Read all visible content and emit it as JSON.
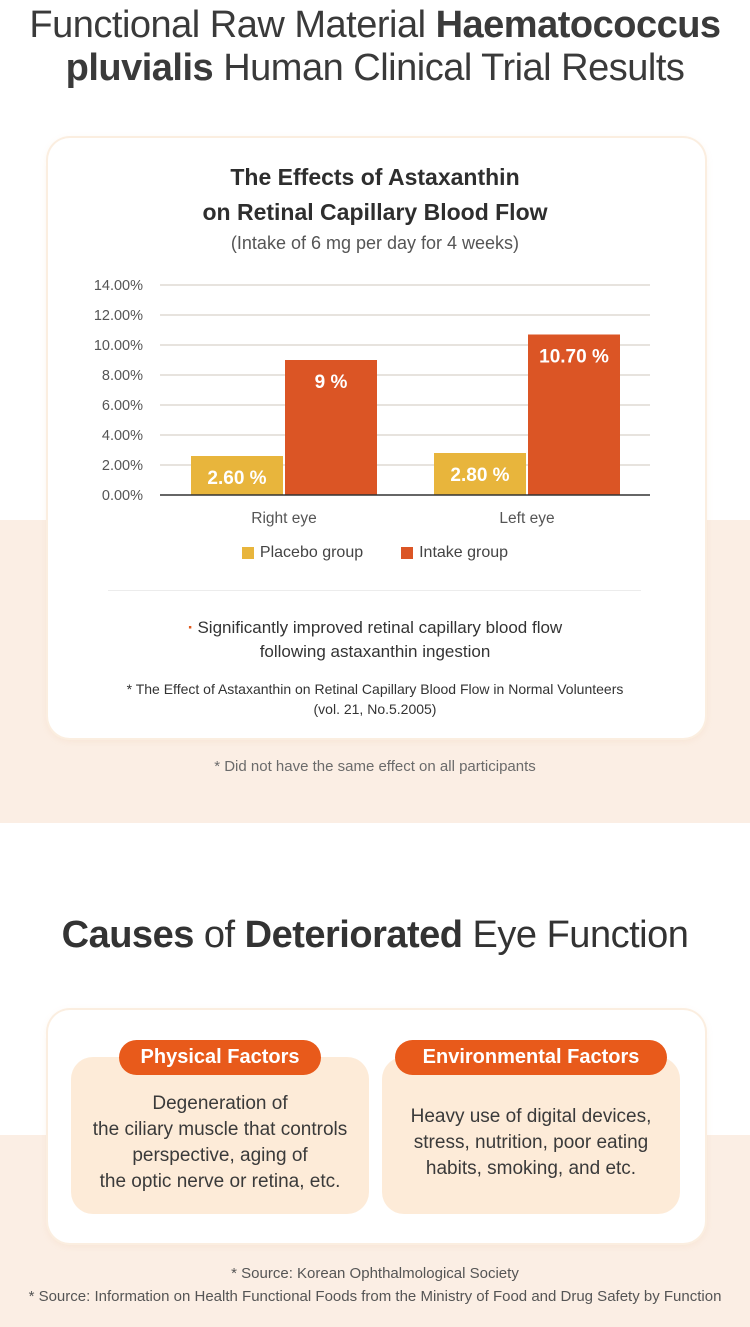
{
  "header": {
    "line1_light": "Functional Raw Material ",
    "line1_bold": "Haematococcus",
    "line2_bold": "pluvialis",
    "line2_light": " Human Clinical Trial Results"
  },
  "chart_card": {
    "title_line1": "The Effects of Astaxanthin",
    "title_line2": "on Retinal Capillary Blood Flow",
    "subtitle": "(Intake of 6 mg per day for 4 weeks)",
    "finding_bullet": "·",
    "finding_line1": "Significantly improved retinal capillary blood flow",
    "finding_line2": "following astaxanthin ingestion",
    "reference_line1": "* The Effect of Astaxanthin on Retinal Capillary Blood Flow in Normal Volunteers",
    "reference_line2": "(vol. 21, No.5.2005)"
  },
  "chart_data": {
    "type": "bar",
    "categories": [
      "Right eye",
      "Left eye"
    ],
    "series": [
      {
        "name": "Placebo group",
        "values": [
          2.6,
          2.8
        ],
        "labels": [
          "2.60 %",
          "2.80 %"
        ],
        "color": "#e8b53c"
      },
      {
        "name": "Intake group",
        "values": [
          9,
          10.7
        ],
        "labels": [
          "9 %",
          "10.70 %"
        ],
        "color": "#db5525"
      }
    ],
    "ylim": [
      0,
      14
    ],
    "yticks": [
      "0.00%",
      "2.00%",
      "4.00%",
      "6.00%",
      "8.00%",
      "10.00%",
      "12.00%",
      "14.00%"
    ],
    "ytick_values": [
      0,
      2,
      4,
      6,
      8,
      10,
      12,
      14
    ],
    "grid": true,
    "legend": "bottom-center"
  },
  "note_participants": "* Did not have the same effect on all participants",
  "causes": {
    "title_bold1": "Causes",
    "title_light1": " of ",
    "title_bold2": "Deteriorated",
    "title_light2": " Eye Function",
    "factors": [
      {
        "label": "Physical Factors",
        "text": "Degeneration of\nthe ciliary muscle that controls\nperspective, aging of\nthe optic nerve or retina, etc."
      },
      {
        "label": "Environmental Factors",
        "text": "Heavy use of digital devices,\nstress, nutrition, poor eating\nhabits, smoking, and etc."
      }
    ]
  },
  "sources": {
    "line1": "* Source: Korean Ophthalmological Society",
    "line2": "* Source: Information on Health Functional Foods from the Ministry of Food and Drug Safety by Function"
  },
  "colors": {
    "accent": "#e85a1b",
    "band": "#fbeee4",
    "factor_box": "#fdebd8"
  }
}
